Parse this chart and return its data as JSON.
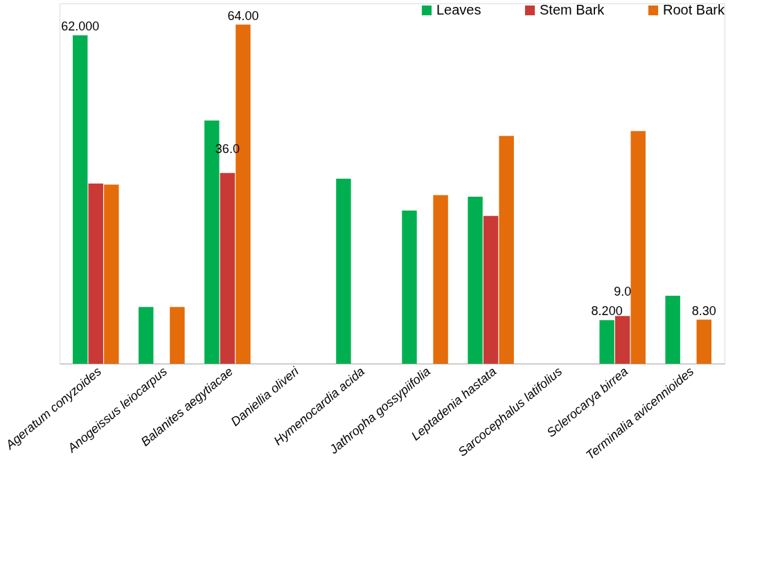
{
  "chart_data": {
    "type": "bar",
    "categories": [
      "Ageratum conyzoides",
      "Anogeissus leiocarpus",
      "Balanites aegytiacae",
      "Daniellia oliveri",
      "Hymenocardia acida",
      "Jathropha gossypiifolia",
      "Leptadenia hastata",
      "Sarcocephalus latifolius",
      "Sclerocarya birrea",
      "Terminalia avicennioides"
    ],
    "series": [
      {
        "name": "Leaves",
        "color": "#00b050",
        "values": [
          62,
          10.7,
          45.9,
          null,
          34.9,
          28.9,
          31.5,
          null,
          8.2,
          12.8
        ],
        "value_labels": [
          "62.000",
          null,
          null,
          null,
          null,
          null,
          null,
          null,
          "8.200",
          null
        ]
      },
      {
        "name": "Stem Bark",
        "color": "#c93a37",
        "values": [
          34.0,
          null,
          36,
          null,
          null,
          null,
          27.9,
          null,
          9.0,
          null
        ],
        "value_labels": [
          null,
          null,
          "36.0",
          null,
          null,
          null,
          null,
          null,
          "9.0",
          null
        ]
      },
      {
        "name": "Root Bark",
        "color": "#e46c0a",
        "values": [
          33.8,
          10.7,
          64,
          null,
          null,
          31.8,
          43.0,
          null,
          43.9,
          8.3
        ],
        "value_labels": [
          null,
          null,
          "64.00",
          null,
          null,
          null,
          null,
          null,
          null,
          "8.30"
        ]
      }
    ],
    "ylim": [
      0,
      68
    ],
    "tick_labels": "x",
    "grid": false,
    "legend": "top right"
  }
}
